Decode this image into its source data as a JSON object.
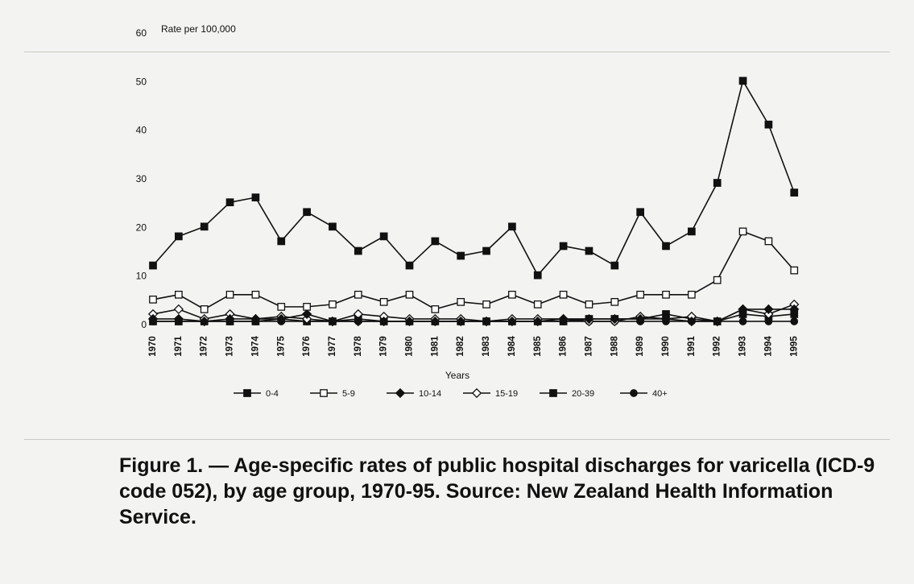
{
  "chart_data": {
    "type": "line",
    "title": "",
    "xlabel": "Years",
    "ylabel": "Rate per 100,000",
    "ylim": [
      0,
      60
    ],
    "yticks": [
      "0",
      "10",
      "20",
      "30",
      "40",
      "50",
      "60"
    ],
    "x": [
      "1970",
      "1971",
      "1972",
      "1973",
      "1974",
      "1975",
      "1976",
      "1977",
      "1978",
      "1979",
      "1980",
      "1981",
      "1982",
      "1983",
      "1984",
      "1985",
      "1986",
      "1987",
      "1988",
      "1989",
      "1990",
      "1991",
      "1992",
      "1993",
      "1994",
      "1995"
    ],
    "legend_position": "bottom",
    "series": [
      {
        "name": "0-4",
        "marker": "filled-square",
        "values": [
          12,
          18,
          20,
          25,
          26,
          17,
          23,
          20,
          15,
          18,
          12,
          17,
          14,
          15,
          20,
          10,
          16,
          15,
          12,
          23,
          16,
          19,
          29,
          50,
          41,
          27
        ]
      },
      {
        "name": "5-9",
        "marker": "open-square",
        "values": [
          5,
          6,
          3,
          6,
          6,
          3.5,
          3.5,
          4,
          6,
          4.5,
          6,
          3,
          4.5,
          4,
          6,
          4,
          6,
          4,
          4.5,
          6,
          6,
          6,
          9,
          19,
          17,
          11
        ]
      },
      {
        "name": "10-14",
        "marker": "filled-diamond",
        "values": [
          1,
          1,
          0.5,
          1,
          1,
          1,
          2,
          0.5,
          0.5,
          0.5,
          0.5,
          0.5,
          0.5,
          0.5,
          0.5,
          0.5,
          1,
          1,
          1,
          1,
          1,
          0.5,
          0.5,
          3,
          3,
          3
        ]
      },
      {
        "name": "15-19",
        "marker": "open-diamond",
        "values": [
          2,
          3,
          1,
          2,
          1,
          1.5,
          1,
          0.5,
          2,
          1.5,
          1,
          1,
          1,
          0.5,
          1,
          1,
          1,
          0.5,
          0.5,
          1.5,
          1,
          1.5,
          0.5,
          3,
          2,
          4
        ]
      },
      {
        "name": "20-39",
        "marker": "filled-square",
        "values": [
          0.5,
          0.5,
          0.5,
          0.5,
          0.5,
          1,
          0.5,
          0.5,
          1,
          0.5,
          0.5,
          0.5,
          0.5,
          0.5,
          0.5,
          0.5,
          0.5,
          1,
          1,
          1,
          2,
          1,
          0.5,
          2,
          1.5,
          2
        ]
      },
      {
        "name": "40+",
        "marker": "filled-circle",
        "values": [
          0.5,
          0.5,
          0.5,
          0.5,
          0.5,
          0.5,
          0.5,
          0.5,
          0.5,
          0.5,
          0.5,
          0.5,
          0.5,
          0.5,
          0.5,
          0.5,
          0.5,
          0.5,
          0.5,
          0.5,
          0.5,
          0.5,
          0.5,
          0.5,
          0.5,
          0.5
        ]
      }
    ]
  },
  "caption": "Figure 1. — Age-specific rates of public hospital discharges for varicella (ICD-9 code 052), by age group, 1970-95.  Source: New Zealand Health Information Service."
}
